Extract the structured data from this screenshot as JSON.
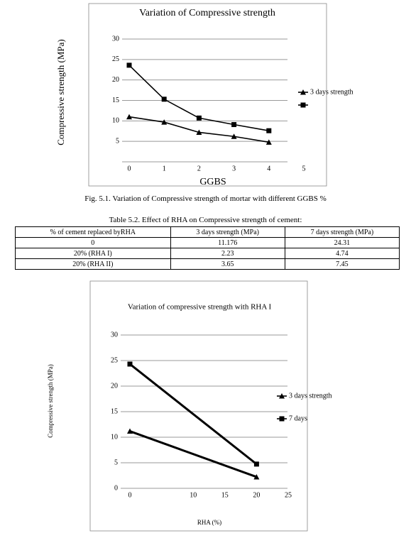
{
  "chart_data": [
    {
      "type": "line",
      "title": "Variation of Compressive strength",
      "y_label": "Compressive strength (MPa)",
      "x_label": "GGBS",
      "x": [
        0,
        1,
        2,
        3,
        4
      ],
      "xlim": [
        0,
        5
      ],
      "xticks": [
        0,
        1,
        2,
        3,
        4,
        5
      ],
      "ylim": [
        0,
        30
      ],
      "yticks": [
        5,
        10,
        15,
        20,
        25,
        30
      ],
      "grid": true,
      "legend": "right",
      "series": [
        {
          "name": "3 days strength",
          "color": "#000000",
          "marker": "triangle",
          "values": [
            11,
            9.7,
            7.2,
            6.2,
            4.8
          ]
        },
        {
          "color": "#000000",
          "marker": "square",
          "values": [
            23.6,
            15.3,
            10.7,
            9.1,
            7.6
          ]
        }
      ]
    },
    {
      "type": "line",
      "title": "Variation of compressive strength with RHA I",
      "y_label": "Compressive strength (MPa)",
      "x_label": "RHA (%)",
      "x": [
        0,
        20
      ],
      "xlim": [
        0,
        25
      ],
      "xticks": [
        0,
        10,
        15,
        20,
        25
      ],
      "ylim": [
        0,
        30
      ],
      "yticks": [
        0,
        5,
        10,
        15,
        20,
        25,
        30
      ],
      "grid": true,
      "legend": "right",
      "series": [
        {
          "name": "3 days strength",
          "color": "#000000",
          "marker": "triangle",
          "values": [
            11.176,
            2.23
          ]
        },
        {
          "name": "7 days",
          "color": "#000000",
          "marker": "square",
          "values": [
            24.31,
            4.74
          ]
        }
      ]
    }
  ],
  "figure_caption": "Fig. 5.1. Variation of Compressive strength of mortar with different GGBS %",
  "table": {
    "caption": "Table 5.2. Effect of RHA on Compressive strength of cement:",
    "header": [
      "% of cement replaced byRHA",
      "3 days strength (MPa)",
      "7 days strength (MPa)"
    ],
    "rows": [
      [
        "0",
        "11.176",
        "24.31"
      ],
      [
        "20% (RHA I)",
        "2.23",
        "4.74"
      ],
      [
        "20% (RHA II)",
        "3.65",
        "7.45"
      ]
    ]
  }
}
